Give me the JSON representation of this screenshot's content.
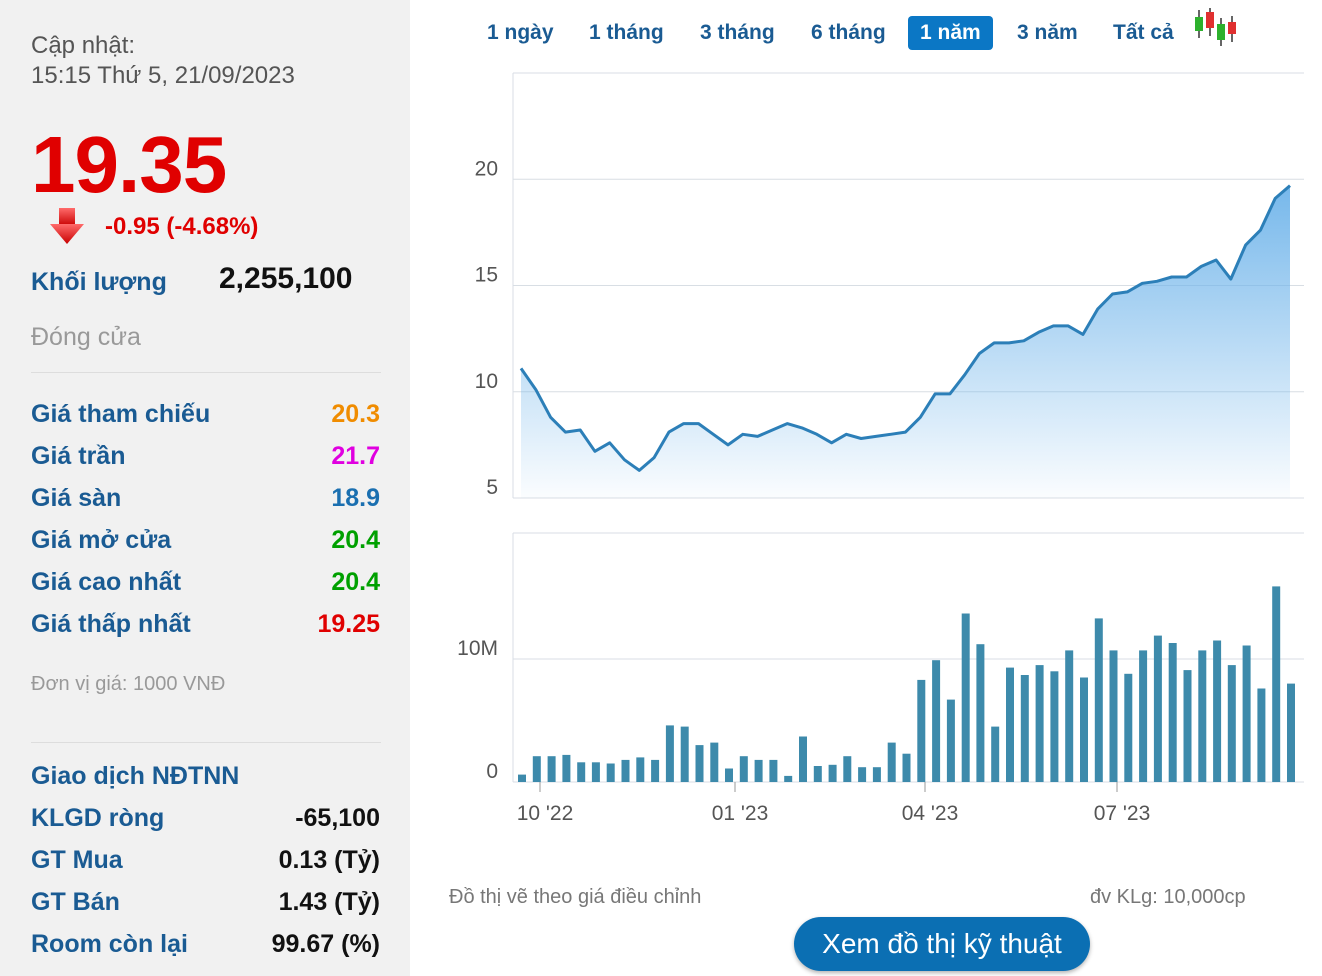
{
  "update": {
    "label": "Cập nhật:",
    "datetime": "15:15 Thứ 5, 21/09/2023"
  },
  "quote": {
    "price": "19.35",
    "change": "-0.95 (-4.68%)",
    "volume_label": "Khối lượng",
    "volume": "2,255,100",
    "status": "Đóng cửa"
  },
  "price_rows": [
    {
      "label": "Giá tham chiếu",
      "value": "20.3",
      "color": "#f08c00"
    },
    {
      "label": "Giá trần",
      "value": "21.7",
      "color": "#e000e0"
    },
    {
      "label": "Giá sàn",
      "value": "18.9",
      "color": "#1a6fb0"
    },
    {
      "label": "Giá mở cửa",
      "value": "20.4",
      "color": "#00a000"
    },
    {
      "label": "Giá cao nhất",
      "value": "20.4",
      "color": "#00a000"
    },
    {
      "label": "Giá thấp nhất",
      "value": "19.25",
      "color": "#e00000"
    }
  ],
  "unit_note": "Đơn vị giá: 1000 VNĐ",
  "foreign": {
    "title": "Giao dịch NĐTNN",
    "rows": [
      {
        "label": "KLGD ròng",
        "value": "-65,100"
      },
      {
        "label": "GT Mua",
        "value": "0.13 (Tỷ)"
      },
      {
        "label": "GT Bán",
        "value": "1.43 (Tỷ)"
      },
      {
        "label": "Room còn lại",
        "value": "99.67 (%)"
      }
    ]
  },
  "tabs": [
    "1 ngày",
    "1 tháng",
    "3 tháng",
    "6 tháng",
    "1 năm",
    "3 năm",
    "Tất cả"
  ],
  "active_tab": "1 năm",
  "candle_icon": "candlestick-icon",
  "notes": {
    "adjusted": "Đồ thị vẽ theo giá điều chỉnh",
    "volume_unit": "đv KLg: 10,000cp"
  },
  "tech_button": "Xem đồ thị kỹ thuật",
  "colors": {
    "line": "#2c7fb8",
    "area_top": "#6fb4ea",
    "bar": "#3d8aab",
    "active_tab": "#0b77c5"
  },
  "chart_data": [
    {
      "type": "area",
      "y_ticks": [
        5,
        10,
        15,
        20
      ],
      "ylim": [
        5,
        25
      ],
      "x_ticks": [
        "10 '22",
        "01 '23",
        "04 '23",
        "07 '23"
      ],
      "grid": true,
      "values": [
        11.1,
        10.1,
        8.8,
        8.1,
        8.2,
        7.2,
        7.6,
        6.8,
        6.3,
        6.9,
        8.1,
        8.5,
        8.5,
        8.0,
        7.5,
        8.0,
        7.9,
        8.2,
        8.5,
        8.3,
        8.0,
        7.6,
        8.0,
        7.8,
        7.9,
        8.0,
        8.1,
        8.8,
        9.9,
        9.9,
        10.8,
        11.8,
        12.3,
        12.3,
        12.4,
        12.8,
        13.1,
        13.1,
        12.7,
        13.9,
        14.6,
        14.7,
        15.1,
        15.2,
        15.4,
        15.4,
        15.9,
        16.2,
        15.3,
        16.9,
        17.6,
        19.1,
        19.7
      ]
    },
    {
      "type": "bar",
      "y_ticks_labels": [
        "0",
        "10M"
      ],
      "y_ticks_values": [
        0,
        10000000
      ],
      "values": [
        0.6,
        2.1,
        2.1,
        2.2,
        1.6,
        1.6,
        1.5,
        1.8,
        2.0,
        1.8,
        4.6,
        4.5,
        3.0,
        3.2,
        1.1,
        2.1,
        1.8,
        1.8,
        0.5,
        3.7,
        1.3,
        1.4,
        2.1,
        1.2,
        1.2,
        3.2,
        2.3,
        8.3,
        9.9,
        6.7,
        13.7,
        11.2,
        4.5,
        9.3,
        8.7,
        9.5,
        9.0,
        10.7,
        8.5,
        13.3,
        10.7,
        8.8,
        10.7,
        11.9,
        11.3,
        9.1,
        10.7,
        11.5,
        9.5,
        11.1,
        7.6,
        15.9,
        8.0
      ]
    }
  ]
}
